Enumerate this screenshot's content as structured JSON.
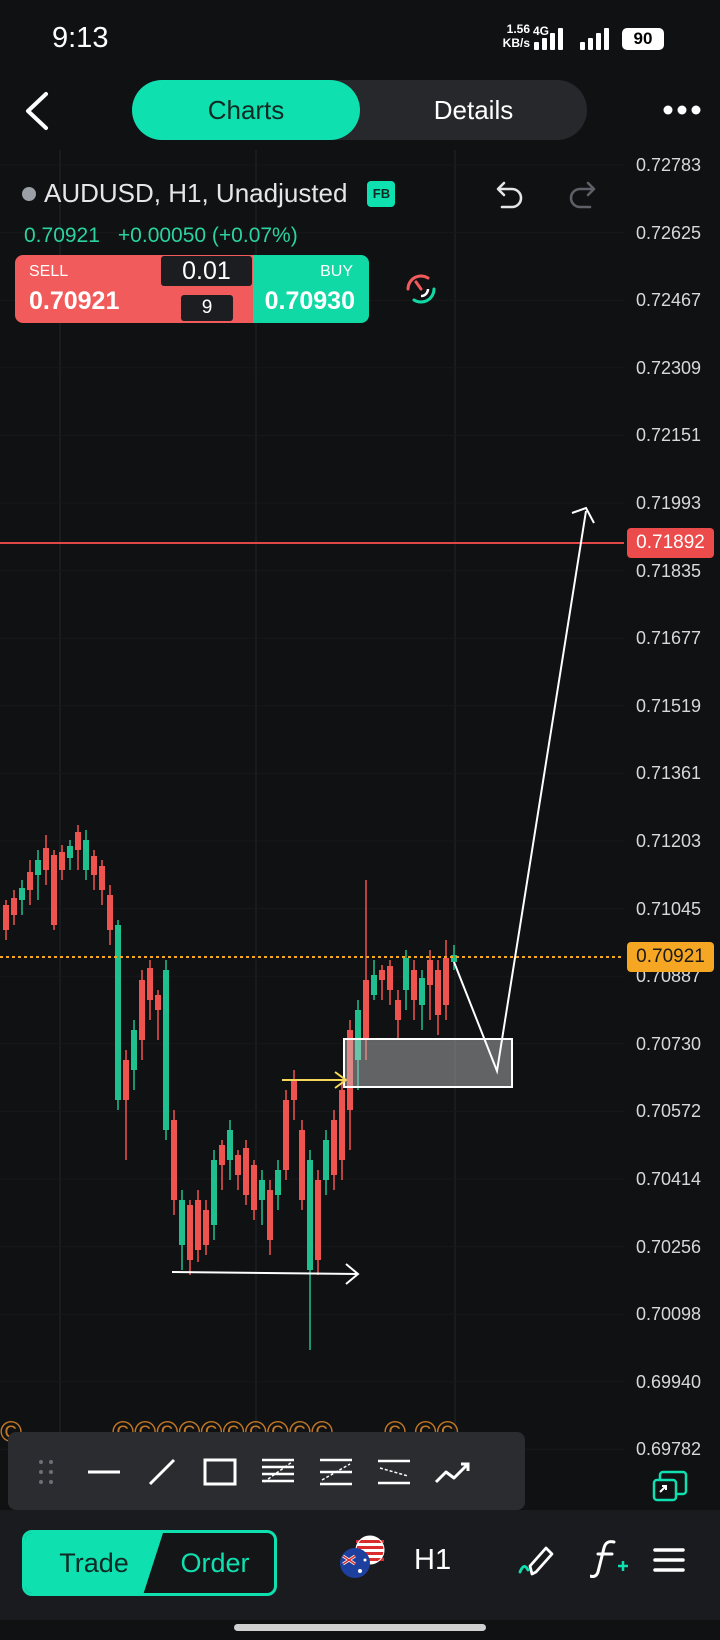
{
  "status_bar": {
    "time": "9:13",
    "net_speed_value": "1.56",
    "net_speed_unit": "KB/s",
    "network": "4G",
    "battery": "90"
  },
  "header": {
    "tabs": [
      {
        "label": "Charts",
        "active": true
      },
      {
        "label": "Details",
        "active": false
      }
    ]
  },
  "symbol": {
    "title": "AUDUSD, H1, Unadjusted",
    "badge": "FB",
    "last_price": "0.70921",
    "change": "+0.00050 (+0.07%)"
  },
  "trade_panel": {
    "sell_label": "SELL",
    "sell_price": "0.70921",
    "buy_label": "BUY",
    "buy_price": "0.70930",
    "lot_size": "0.01",
    "spread": "9"
  },
  "price_axis": {
    "labels": [
      "0.72783",
      "0.72625",
      "0.72467",
      "0.72309",
      "0.72151",
      "0.71993",
      "0.71835",
      "0.71677",
      "0.71519",
      "0.71361",
      "0.71203",
      "0.71045",
      "0.70887",
      "0.70730",
      "0.70572",
      "0.70414",
      "0.70256",
      "0.70098",
      "0.69940",
      "0.69782"
    ],
    "alert_line_price": "0.71892",
    "current_price": "0.70921"
  },
  "colors": {
    "accent": "#0ee0b0",
    "bull": "#1fbf8f",
    "bear": "#ef5350",
    "alert": "#ec4b4b",
    "current": "#f5a623"
  },
  "draw_toolbar": {
    "tools": [
      "drag-handle-icon",
      "horizontal-line-icon",
      "trend-line-icon",
      "rectangle-icon",
      "fib-retracement-icon",
      "parallel-channel-icon",
      "pitchfork-icon",
      "path-icon"
    ]
  },
  "bottom_nav": {
    "trade_label": "Trade",
    "order_label": "Order",
    "timeframe": "H1"
  }
}
